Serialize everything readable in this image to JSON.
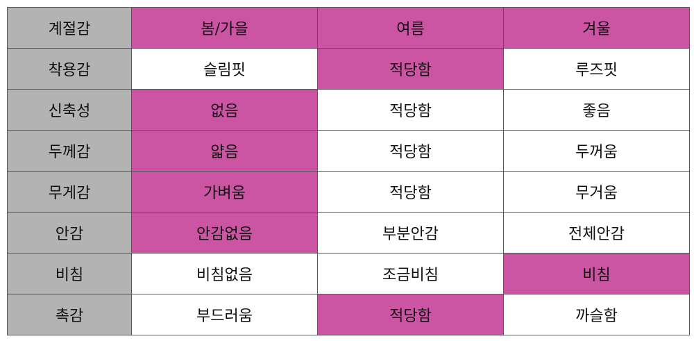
{
  "colors": {
    "highlight": "#cb55a3",
    "label_bg": "#b3b3b3",
    "cell_bg": "#ffffff"
  },
  "rows": [
    {
      "label": "계절감",
      "cells": [
        {
          "text": "봄/가을",
          "hl": true
        },
        {
          "text": "여름",
          "hl": true
        },
        {
          "text": "겨울",
          "hl": true
        }
      ]
    },
    {
      "label": "착용감",
      "cells": [
        {
          "text": "슬림핏",
          "hl": false
        },
        {
          "text": "적당함",
          "hl": true
        },
        {
          "text": "루즈핏",
          "hl": false
        }
      ]
    },
    {
      "label": "신축성",
      "cells": [
        {
          "text": "없음",
          "hl": true
        },
        {
          "text": "적당함",
          "hl": false
        },
        {
          "text": "좋음",
          "hl": false
        }
      ]
    },
    {
      "label": "두께감",
      "cells": [
        {
          "text": "얇음",
          "hl": true
        },
        {
          "text": "적당함",
          "hl": false
        },
        {
          "text": "두꺼움",
          "hl": false
        }
      ]
    },
    {
      "label": "무게감",
      "cells": [
        {
          "text": "가벼움",
          "hl": true
        },
        {
          "text": "적당함",
          "hl": false
        },
        {
          "text": "무거움",
          "hl": false
        }
      ]
    },
    {
      "label": "안감",
      "cells": [
        {
          "text": "안감없음",
          "hl": true
        },
        {
          "text": "부분안감",
          "hl": false
        },
        {
          "text": "전체안감",
          "hl": false
        }
      ]
    },
    {
      "label": "비침",
      "cells": [
        {
          "text": "비침없음",
          "hl": false
        },
        {
          "text": "조금비침",
          "hl": false
        },
        {
          "text": "비침",
          "hl": true
        }
      ]
    },
    {
      "label": "촉감",
      "cells": [
        {
          "text": "부드러움",
          "hl": false
        },
        {
          "text": "적당함",
          "hl": true
        },
        {
          "text": "까슬함",
          "hl": false
        }
      ]
    }
  ]
}
